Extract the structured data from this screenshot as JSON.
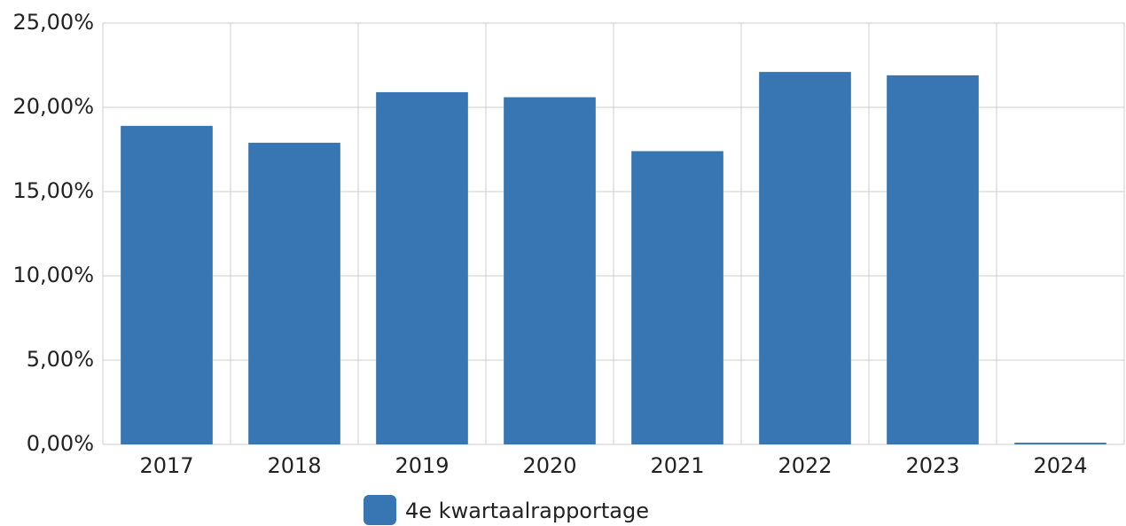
{
  "chart_data": {
    "type": "bar",
    "categories": [
      "2017",
      "2018",
      "2019",
      "2020",
      "2021",
      "2022",
      "2023",
      "2024"
    ],
    "series": [
      {
        "name": "4e kwartaalrapportage",
        "color": "#3776b3",
        "values": [
          18.9,
          17.9,
          20.9,
          20.6,
          17.4,
          22.1,
          21.9,
          0.1
        ]
      }
    ],
    "ylim": [
      0,
      25
    ],
    "yticks": [
      {
        "value": 0,
        "label": "0,00%"
      },
      {
        "value": 5,
        "label": "5,00%"
      },
      {
        "value": 10,
        "label": "10,00%"
      },
      {
        "value": 15,
        "label": "15,00%"
      },
      {
        "value": 20,
        "label": "20,00%"
      },
      {
        "value": 25,
        "label": "25,00%"
      }
    ],
    "grid": true,
    "legend": "bottom"
  }
}
